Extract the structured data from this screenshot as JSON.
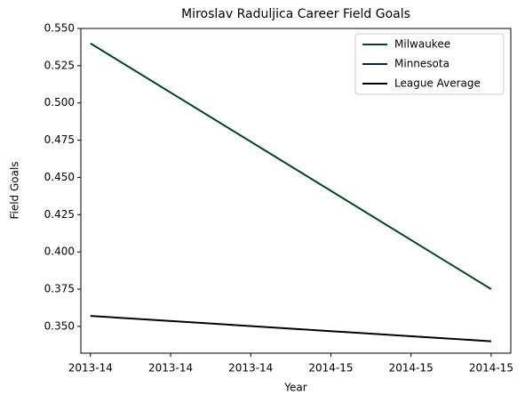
{
  "chart_data": {
    "type": "line",
    "title": "Miroslav Raduljica Career Field Goals",
    "xlabel": "Year",
    "ylabel": "Field Goals",
    "x": [
      0,
      1
    ],
    "series": [
      {
        "name": "Milwaukee",
        "color": "#00471b",
        "values": [
          0.54,
          0.375
        ]
      },
      {
        "name": "Minnesota",
        "color": "#0c2340",
        "values": [
          null,
          null
        ]
      },
      {
        "name": "League Average",
        "color": "#000000",
        "values": [
          0.357,
          0.34
        ]
      }
    ],
    "xlim": [
      -0.024,
      1.049
    ],
    "xticks": [
      {
        "value": 0,
        "label": "2013-14"
      },
      {
        "value": 0.2,
        "label": "2013-14"
      },
      {
        "value": 0.4,
        "label": "2013-14"
      },
      {
        "value": 0.6,
        "label": "2014-15"
      },
      {
        "value": 0.8,
        "label": "2014-15"
      },
      {
        "value": 1.0,
        "label": "2014-15"
      }
    ],
    "ylim": [
      0.332,
      0.55
    ],
    "yticks": [
      {
        "value": 0.35,
        "label": "0.350"
      },
      {
        "value": 0.375,
        "label": "0.375"
      },
      {
        "value": 0.4,
        "label": "0.400"
      },
      {
        "value": 0.425,
        "label": "0.425"
      },
      {
        "value": 0.45,
        "label": "0.450"
      },
      {
        "value": 0.475,
        "label": "0.475"
      },
      {
        "value": 0.5,
        "label": "0.500"
      },
      {
        "value": 0.525,
        "label": "0.525"
      },
      {
        "value": 0.55,
        "label": "0.550"
      }
    ],
    "legend": "upper right"
  }
}
